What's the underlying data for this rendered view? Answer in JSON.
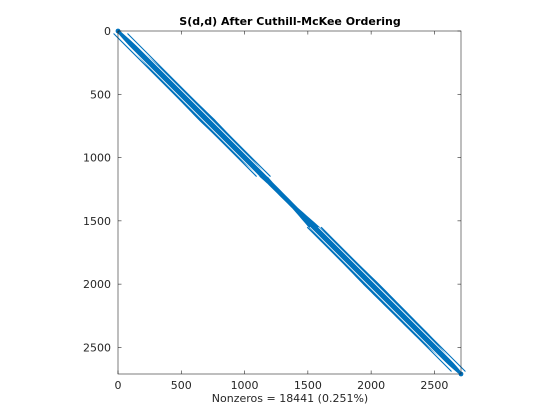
{
  "chart_data": {
    "type": "scatter",
    "subtype": "sparsity-pattern",
    "title": "S(d,d) After Cuthill-McKee Ordering",
    "xlabel": "Nonzeros = 18441 (0.251%)",
    "ylabel": "",
    "xlim": [
      0,
      2710
    ],
    "ylim": [
      0,
      2710
    ],
    "y_reversed": true,
    "x_ticks": [
      0,
      500,
      1000,
      1500,
      2000,
      2500
    ],
    "y_ticks": [
      0,
      500,
      1000,
      1500,
      2000,
      2500
    ],
    "x_tick_labels": [
      "0",
      "500",
      "1000",
      "1500",
      "2000",
      "2500"
    ],
    "y_tick_labels": [
      "0",
      "500",
      "1000",
      "1500",
      "2000",
      "2500"
    ],
    "grid": false,
    "aspect": "equal",
    "marker_color": "#0072BD",
    "nonzeros": 18441,
    "density_percent": 0.251,
    "matrix_size": 2710,
    "band": {
      "diagonal": true,
      "off_diagonals": [
        {
          "row_start": 20,
          "row_end": 1150,
          "offset": 55
        },
        {
          "row_start": 1550,
          "row_end": 2690,
          "offset": 55
        }
      ],
      "half_bandwidth_profile": [
        {
          "row": 0,
          "half_width": 10
        },
        {
          "row": 300,
          "half_width": 45
        },
        {
          "row": 700,
          "half_width": 60
        },
        {
          "row": 1000,
          "half_width": 45
        },
        {
          "row": 1200,
          "half_width": 20
        },
        {
          "row": 1400,
          "half_width": 18
        },
        {
          "row": 1600,
          "half_width": 45
        },
        {
          "row": 2000,
          "half_width": 60
        },
        {
          "row": 2400,
          "half_width": 55
        },
        {
          "row": 2700,
          "half_width": 12
        }
      ]
    }
  }
}
